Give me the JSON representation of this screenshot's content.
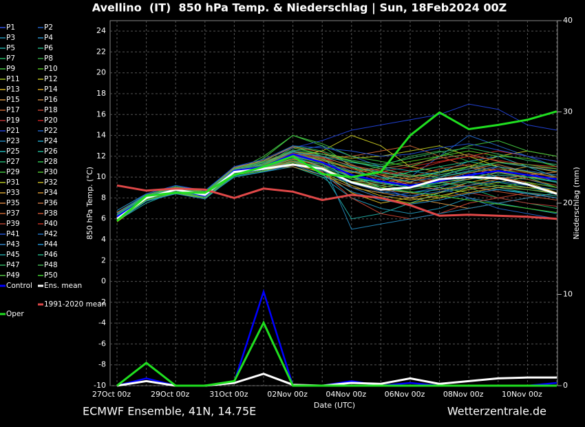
{
  "chart_data": {
    "type": "line",
    "title": "Avellino  (IT)  850 hPa Temp. & Niederschlag | Sun, 18Feb2024 00Z",
    "x_label": "Date (UTC)",
    "y_label": "850 hPa Temp. (°C)",
    "y2_label": "Niederschlag (mm)",
    "source_left": "ECMWF Ensemble, 41N, 14.75E",
    "source_right": "Wetterzentrale.de",
    "categories": [
      "27Oct 00z",
      null,
      "29Oct 00z",
      null,
      "31Oct 00z",
      null,
      "02Nov 00z",
      null,
      "04Nov 00z",
      null,
      "06Nov 00z",
      null,
      "08Nov 00z",
      null,
      "10Nov 00z",
      null
    ],
    "ylim": [
      -10,
      25
    ],
    "yticks": [
      -10,
      -8,
      -6,
      -4,
      -2,
      0,
      2,
      4,
      6,
      8,
      10,
      12,
      14,
      16,
      18,
      20,
      22,
      24
    ],
    "y2lim": [
      0,
      40
    ],
    "y2ticks": [
      0,
      10,
      20,
      30,
      40
    ],
    "grid": true,
    "series": [
      {
        "name": "P1",
        "color": "#3050e0",
        "values": [
          6.5,
          8.2,
          9,
          8.5,
          10.8,
          11,
          12,
          11.5,
          10,
          9,
          8,
          9,
          10,
          11,
          10.5,
          9.5
        ]
      },
      {
        "name": "P2",
        "color": "#2060c0",
        "values": [
          6.2,
          8,
          8.8,
          8,
          10.2,
          11.2,
          12.5,
          13,
          12,
          11,
          10,
          12,
          14,
          13,
          12,
          11
        ]
      },
      {
        "name": "P3",
        "color": "#2090b0",
        "values": [
          6,
          7.8,
          8.5,
          8.2,
          10.5,
          10.5,
          11,
          10,
          8,
          7,
          6.5,
          7,
          8,
          7.5,
          7,
          6.5
        ]
      },
      {
        "name": "P4",
        "color": "#2a90c8",
        "values": [
          6.8,
          8.4,
          9.2,
          8.6,
          11,
          11.5,
          12.5,
          12,
          9,
          8.5,
          9,
          9.5,
          10.5,
          10,
          9.8,
          9
        ]
      },
      {
        "name": "P5",
        "color": "#20a8a0",
        "values": [
          5.8,
          7.5,
          8.6,
          8,
          10,
          10.5,
          11.5,
          10.5,
          6,
          6.5,
          7.5,
          8.5,
          9,
          8.8,
          8.5,
          8
        ]
      },
      {
        "name": "P6",
        "color": "#20b080",
        "values": [
          6.3,
          8.1,
          9,
          8.4,
          10.8,
          11,
          11,
          10,
          9.5,
          9.8,
          10.5,
          11,
          10,
          9.5,
          9,
          8.5
        ]
      },
      {
        "name": "P7",
        "color": "#20b060",
        "values": [
          6,
          8,
          8.7,
          8.3,
          10.4,
          11.5,
          13,
          12,
          11,
          10,
          9,
          9.5,
          9,
          8,
          7.5,
          7
        ]
      },
      {
        "name": "P8",
        "color": "#30a040",
        "values": [
          5.9,
          7.9,
          8.6,
          8.1,
          10.6,
          11,
          12,
          11,
          10.5,
          11,
          12,
          12.5,
          11.5,
          11,
          10,
          9.5
        ]
      },
      {
        "name": "P9",
        "color": "#40c040",
        "values": [
          6.1,
          8.3,
          9.1,
          8.5,
          10.5,
          12,
          14,
          13,
          11,
          9.5,
          9,
          10,
          11,
          10.5,
          10,
          9
        ]
      },
      {
        "name": "P10",
        "color": "#50c020",
        "values": [
          6,
          8,
          8.8,
          8.3,
          10.9,
          11.2,
          12.8,
          12.2,
          11.5,
          11,
          11.5,
          12,
          12.5,
          12,
          11.8,
          11
        ]
      },
      {
        "name": "P11",
        "color": "#a0c020",
        "values": [
          6.4,
          8.2,
          8.9,
          8.2,
          10.3,
          10.7,
          11.5,
          11,
          9,
          8,
          7.5,
          8,
          9,
          9.5,
          10,
          10
        ]
      },
      {
        "name": "P12",
        "color": "#c0c020",
        "values": [
          6.2,
          8,
          8.5,
          8,
          10.6,
          11,
          12,
          12.5,
          14,
          13,
          11,
          10.5,
          11,
          12,
          12.5,
          12
        ]
      },
      {
        "name": "P13",
        "color": "#d0b020",
        "values": [
          5.7,
          7.8,
          8.4,
          8,
          10.2,
          10.8,
          11.8,
          10.5,
          8.5,
          7.5,
          8,
          8.5,
          9.5,
          10,
          9.5,
          8.5
        ]
      },
      {
        "name": "P14",
        "color": "#d0a020",
        "values": [
          6.6,
          8.3,
          9,
          8.6,
          10.7,
          11.3,
          12.2,
          11.5,
          10,
          9,
          9.5,
          10.5,
          11,
          10.5,
          10,
          9.8
        ]
      },
      {
        "name": "P15",
        "color": "#d09040",
        "values": [
          6,
          8,
          8.8,
          8.2,
          10.5,
          10.8,
          11,
          10.2,
          9,
          8.5,
          8,
          7.5,
          7,
          7.5,
          8,
          8.5
        ]
      },
      {
        "name": "P16",
        "color": "#c08040",
        "values": [
          6.1,
          8.1,
          8.7,
          8.3,
          10.4,
          11,
          11.5,
          10.8,
          9.5,
          9.2,
          9.8,
          10.2,
          10.8,
          11.2,
          10.5,
          10
        ]
      },
      {
        "name": "P17",
        "color": "#c06030",
        "values": [
          6.3,
          8.2,
          8.9,
          8.4,
          10.6,
          11.2,
          12,
          11.8,
          12,
          12.5,
          13,
          12,
          11,
          10,
          9.5,
          9
        ]
      },
      {
        "name": "P18",
        "color": "#c04030",
        "values": [
          5.9,
          7.9,
          8.6,
          8.1,
          10.3,
          10.6,
          11.2,
          10.5,
          8,
          6.5,
          6,
          6.5,
          7.5,
          8,
          8.5,
          8
        ]
      },
      {
        "name": "P19",
        "color": "#b03030",
        "values": [
          6.2,
          8,
          8.8,
          8.3,
          10.8,
          11.5,
          12.5,
          12,
          10.5,
          9.8,
          9.5,
          9,
          8.5,
          8,
          7.5,
          7.2
        ]
      },
      {
        "name": "P20",
        "color": "#c02020",
        "values": [
          6,
          8.1,
          8.7,
          8.2,
          10.5,
          11,
          11.8,
          11.2,
          10,
          10.5,
          11,
          11.5,
          12,
          12.5,
          12,
          11.5
        ]
      },
      {
        "name": "P21",
        "color": "#2040d0",
        "values": [
          6.4,
          8.3,
          9,
          8.5,
          10.9,
          11.6,
          12.8,
          13.5,
          14.5,
          15,
          15.5,
          16,
          17,
          16.5,
          15,
          14.5
        ]
      },
      {
        "name": "P22",
        "color": "#2060c0",
        "values": [
          6.1,
          8,
          8.7,
          8.1,
          10.2,
          10.8,
          12,
          11,
          9,
          8,
          8.5,
          9,
          8,
          7,
          6.5,
          6
        ]
      },
      {
        "name": "P23",
        "color": "#2080b0",
        "values": [
          5.8,
          7.7,
          8.5,
          8,
          10.4,
          11,
          12.5,
          11.5,
          5,
          5.5,
          6,
          6.5,
          7,
          7.5,
          8,
          8.5
        ]
      },
      {
        "name": "P24",
        "color": "#20a0c0",
        "values": [
          6.3,
          8.2,
          8.8,
          8.4,
          10.6,
          11.2,
          12.2,
          12,
          11,
          10.5,
          10,
          10.5,
          11.5,
          12,
          11,
          10
        ]
      },
      {
        "name": "P25",
        "color": "#20b0b0",
        "values": [
          6,
          8,
          8.7,
          8.2,
          10.5,
          10.9,
          11.5,
          11,
          10,
          9.5,
          9,
          9.2,
          9.8,
          10.2,
          10,
          9.5
        ]
      },
      {
        "name": "P26",
        "color": "#20b090",
        "values": [
          6.2,
          8.1,
          8.9,
          8.3,
          10.7,
          11.3,
          12.5,
          11.8,
          10.2,
          9,
          8.5,
          8.8,
          9.5,
          9,
          8.5,
          8.2
        ]
      },
      {
        "name": "P27",
        "color": "#20b070",
        "values": [
          5.9,
          7.9,
          8.6,
          8.1,
          10.3,
          10.7,
          11.6,
          10.8,
          9.8,
          9.6,
          10.5,
          11,
          11.5,
          11,
          10.5,
          10
        ]
      },
      {
        "name": "P28",
        "color": "#30c050",
        "values": [
          6.5,
          8.3,
          9.1,
          8.6,
          10.9,
          11.5,
          13,
          12.5,
          11.5,
          10.8,
          10.2,
          10,
          10.5,
          10.8,
          10.2,
          9.8
        ]
      },
      {
        "name": "P29",
        "color": "#40c040",
        "values": [
          6.1,
          8,
          8.8,
          8.2,
          10.4,
          11.8,
          14,
          13.2,
          12,
          11.5,
          11,
          12,
          13,
          13.5,
          12.5,
          12
        ]
      },
      {
        "name": "P30",
        "color": "#50c030",
        "values": [
          6,
          8.1,
          8.7,
          8.3,
          10.6,
          11,
          12,
          11.3,
          10.5,
          10,
          9.5,
          9,
          8.5,
          9,
          9.5,
          9
        ]
      },
      {
        "name": "P31",
        "color": "#b0c020",
        "values": [
          6.3,
          8.2,
          9,
          8.4,
          10.8,
          11.4,
          12.4,
          12.2,
          11.8,
          12,
          12.5,
          13,
          12,
          11,
          10.5,
          10
        ]
      },
      {
        "name": "P32",
        "color": "#c0b020",
        "values": [
          5.8,
          7.8,
          8.5,
          8,
          10.2,
          10.6,
          11.3,
          10.4,
          9.2,
          8.2,
          7.8,
          8.2,
          8.8,
          9.2,
          9,
          8.8
        ]
      },
      {
        "name": "P33",
        "color": "#d0a030",
        "values": [
          6.2,
          8.1,
          8.8,
          8.3,
          10.5,
          11.1,
          12.1,
          11.6,
          10.8,
          10.2,
          9.8,
          9.5,
          9.8,
          10.5,
          11,
          10.5
        ]
      },
      {
        "name": "P34",
        "color": "#d09030",
        "values": [
          6,
          7.9,
          8.6,
          8.1,
          10.3,
          10.8,
          11.8,
          11,
          9.5,
          8.8,
          8.5,
          8,
          8.5,
          9,
          8.8,
          8.5
        ]
      },
      {
        "name": "P35",
        "color": "#d08040",
        "values": [
          6.4,
          8.3,
          9,
          8.5,
          10.9,
          11.6,
          12.9,
          12.4,
          11.2,
          10.2,
          9.2,
          8.8,
          9.2,
          9.8,
          10.2,
          10.5
        ]
      },
      {
        "name": "P36",
        "color": "#c07040",
        "values": [
          6.1,
          8,
          8.7,
          8.2,
          10.5,
          10.9,
          11.7,
          11.2,
          10.4,
          10.8,
          11.2,
          11.8,
          12.2,
          11.5,
          11,
          10.8
        ]
      },
      {
        "name": "P37",
        "color": "#c06030",
        "values": [
          5.9,
          7.9,
          8.6,
          8.1,
          10.4,
          10.8,
          11.5,
          10.6,
          9.6,
          9.4,
          10,
          10.8,
          11.2,
          10.6,
          9.8,
          9.2
        ]
      },
      {
        "name": "P38",
        "color": "#c05030",
        "values": [
          6.3,
          8.2,
          8.9,
          8.4,
          10.7,
          11.3,
          12.3,
          11.9,
          11.1,
          10.6,
          10.1,
          9.6,
          9.1,
          8.6,
          8.2,
          7.8
        ]
      },
      {
        "name": "P39",
        "color": "#b04030",
        "values": [
          6,
          8,
          8.8,
          8.2,
          10.5,
          11,
          12,
          11.5,
          10.2,
          9.6,
          9.4,
          9.8,
          10.4,
          10.8,
          10.4,
          10
        ]
      },
      {
        "name": "P40",
        "color": "#c03020",
        "values": [
          6.2,
          8.1,
          8.8,
          8.3,
          10.6,
          11.2,
          12.2,
          11.8,
          10.8,
          10.2,
          10.6,
          11.4,
          12,
          11.6,
          11.2,
          11
        ]
      },
      {
        "name": "P41",
        "color": "#2050d0",
        "values": [
          6.5,
          8.4,
          9.2,
          8.7,
          11,
          11.7,
          13,
          12.8,
          12.5,
          12,
          12.2,
          12.8,
          13.2,
          12.6,
          12,
          11.5
        ]
      },
      {
        "name": "P42",
        "color": "#2070c0",
        "values": [
          6,
          7.9,
          8.6,
          8.1,
          10.3,
          10.7,
          11.4,
          10.6,
          9.4,
          8.6,
          8.2,
          8.6,
          9.2,
          9.6,
          9.2,
          8.8
        ]
      },
      {
        "name": "P43",
        "color": "#3080c0",
        "values": [
          6.2,
          8.1,
          8.8,
          8.3,
          10.6,
          11.1,
          12,
          11.4,
          10.6,
          10,
          9.6,
          10,
          10.6,
          11,
          10.6,
          10.2
        ]
      },
      {
        "name": "P44",
        "color": "#2090d0",
        "values": [
          5.8,
          7.7,
          8.4,
          7.9,
          10.1,
          10.5,
          11.2,
          10.2,
          8.6,
          7.8,
          7.4,
          7.8,
          8.4,
          8.8,
          8.4,
          8
        ]
      },
      {
        "name": "P45",
        "color": "#20a0a0",
        "values": [
          6.3,
          8.2,
          8.9,
          8.4,
          10.7,
          11.3,
          12.4,
          12,
          11.4,
          11,
          10.6,
          10.2,
          10.8,
          11.4,
          11,
          10.6
        ]
      },
      {
        "name": "P46",
        "color": "#20b080",
        "values": [
          6.1,
          8,
          8.7,
          8.2,
          10.4,
          10.9,
          11.8,
          11.2,
          10,
          9.4,
          9,
          9.4,
          10,
          10.4,
          10,
          9.6
        ]
      },
      {
        "name": "P47",
        "color": "#30b060",
        "values": [
          6.4,
          8.3,
          9,
          8.5,
          10.8,
          11.4,
          12.6,
          12.2,
          11.6,
          11.2,
          11.8,
          12.4,
          12.8,
          12.2,
          11.6,
          11.2
        ]
      },
      {
        "name": "P48",
        "color": "#40b050",
        "values": [
          6,
          7.9,
          8.6,
          8.1,
          10.3,
          10.8,
          11.6,
          10.9,
          9.8,
          9.2,
          8.8,
          9.2,
          9.6,
          9.2,
          8.8,
          8.4
        ]
      },
      {
        "name": "P49",
        "color": "#50c040",
        "values": [
          6.2,
          8.1,
          8.8,
          8.3,
          10.6,
          11.2,
          12.2,
          11.7,
          10.9,
          10.4,
          10,
          10.4,
          11,
          11.4,
          11.2,
          10.8
        ]
      },
      {
        "name": "P50",
        "color": "#40d030",
        "values": [
          5.9,
          7.8,
          8.5,
          8,
          10.2,
          10.6,
          11.4,
          10.7,
          9.6,
          9,
          8.6,
          8.2,
          7.8,
          7.4,
          7,
          6.6
        ]
      },
      {
        "name": "Control",
        "color": "#0000ff",
        "values": [
          6.2,
          8,
          8.8,
          8.2,
          10.6,
          11,
          12.2,
          11.4,
          10.2,
          9.6,
          9.2,
          9.6,
          10.2,
          10.6,
          10.2,
          9.8
        ],
        "precip": [
          0,
          0.8,
          0,
          0,
          0.4,
          10.3,
          0,
          0,
          0.5,
          0,
          0.3,
          0,
          0,
          0,
          0,
          0.3
        ]
      },
      {
        "name": "Ens. mean",
        "color": "#ffffff",
        "values": [
          6,
          8,
          8.8,
          8.3,
          10.5,
          10.8,
          11.2,
          10.8,
          9.5,
          8.8,
          9,
          9.8,
          10,
          9.9,
          9.3,
          8.4
        ],
        "precip": [
          0,
          0.5,
          0,
          0,
          0.3,
          1.3,
          0.1,
          0,
          0.3,
          0.2,
          0.8,
          0.2,
          0.5,
          0.8,
          0.9,
          0.9
        ]
      },
      {
        "name": "1991-2020 mean",
        "color": "#e04848",
        "values": [
          9.2,
          8.7,
          8.9,
          8.8,
          8,
          8.9,
          8.6,
          7.8,
          8.3,
          8,
          7.3,
          6.3,
          6.4,
          6.3,
          6.2,
          6
        ]
      },
      {
        "name": "Oper",
        "color": "#20e020",
        "values": [
          5.8,
          8.2,
          8.5,
          8.5,
          10.2,
          11,
          12,
          10.3,
          10,
          10.5,
          14,
          16.2,
          14.6,
          15,
          15.5,
          16.3
        ],
        "precip": [
          0,
          2.5,
          0,
          0,
          0.5,
          6.9,
          0,
          0,
          0,
          0,
          0,
          0,
          0,
          0,
          0,
          0
        ]
      }
    ]
  }
}
